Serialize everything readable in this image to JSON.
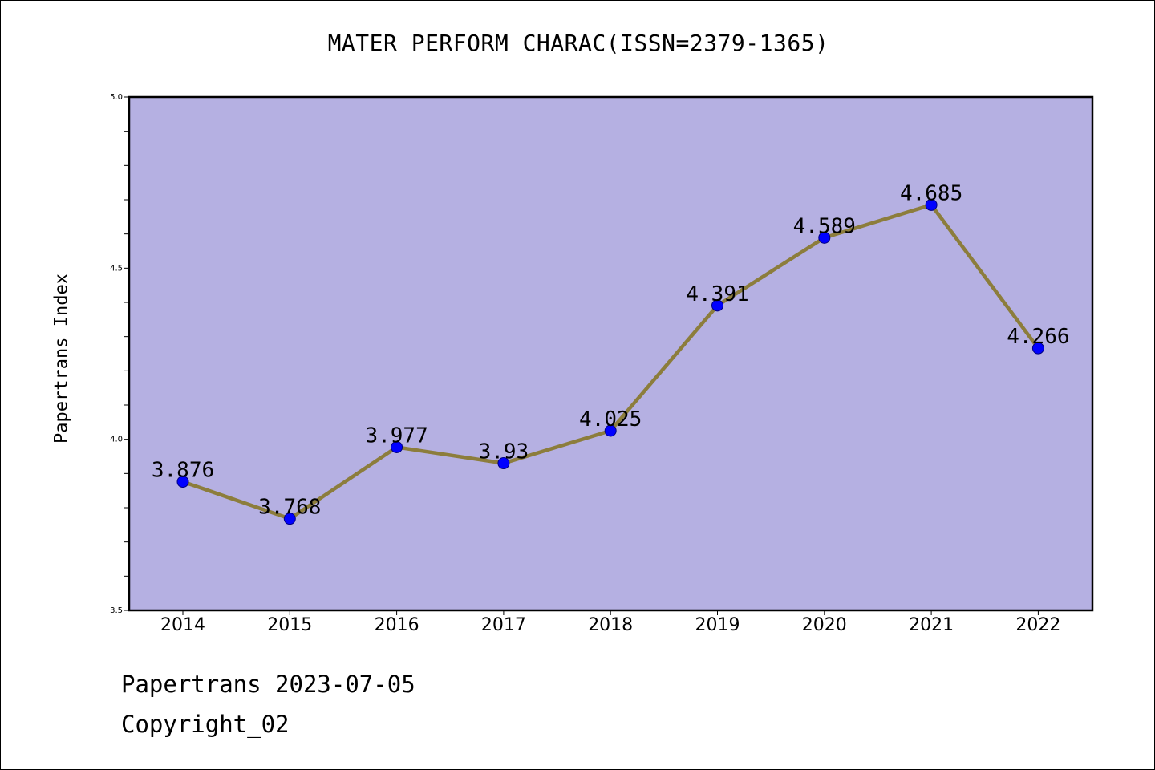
{
  "title": "MATER PERFORM CHARAC(ISSN=2379-1365)",
  "footer": {
    "line1": "Papertrans 2023-07-05",
    "line2": "Copyright_02"
  },
  "colors": {
    "plot_background": "#b5b0e2",
    "line": "#8c7d3c",
    "marker": "#0000ff"
  },
  "chart_data": {
    "type": "line",
    "title": "MATER PERFORM CHARAC(ISSN=2379-1365)",
    "xlabel": "",
    "ylabel": "Papertrans Index",
    "ylim": [
      3.5,
      5.0
    ],
    "yticks": [
      "3.5",
      "4.0",
      "4.5",
      "5.0"
    ],
    "y_minor_step": 0.1,
    "grid": false,
    "legend": "none",
    "x": [
      "2014",
      "2015",
      "2016",
      "2017",
      "2018",
      "2019",
      "2020",
      "2021",
      "2022"
    ],
    "series": [
      {
        "values": [
          3.876,
          3.768,
          3.977,
          3.93,
          4.025,
          4.391,
          4.589,
          4.685,
          4.266
        ],
        "labels": [
          "3.876",
          "3.768",
          "3.977",
          "3.93",
          "4.025",
          "4.391",
          "4.589",
          "4.685",
          "4.266"
        ]
      }
    ]
  }
}
